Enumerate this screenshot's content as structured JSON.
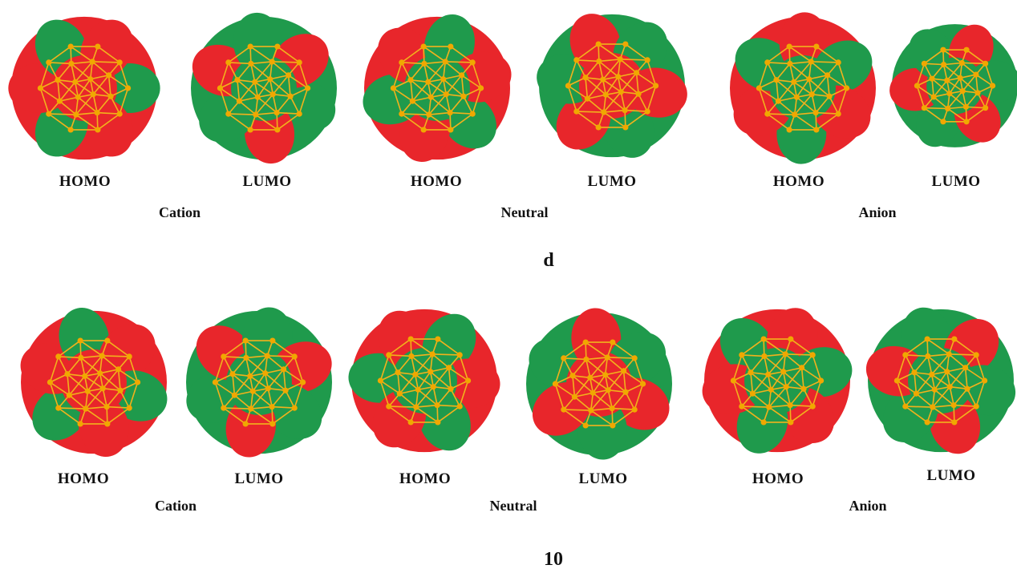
{
  "rows": [
    {
      "orbitals": [
        {
          "label": "HOMO"
        },
        {
          "label": "LUMO"
        },
        {
          "label": "HOMO"
        },
        {
          "label": "LUMO"
        },
        {
          "label": "HOMO"
        },
        {
          "label": "LUMO"
        }
      ],
      "groups": [
        "Cation",
        "Neutral",
        "Anion"
      ],
      "panel_label": "d"
    },
    {
      "orbitals": [
        {
          "label": "HOMO"
        },
        {
          "label": "LUMO"
        },
        {
          "label": "HOMO"
        },
        {
          "label": "LUMO"
        },
        {
          "label": "HOMO"
        },
        {
          "label": "LUMO"
        }
      ],
      "groups": [
        "Cation",
        "Neutral",
        "Anion"
      ],
      "panel_label": "10"
    }
  ],
  "colors": {
    "lobe_positive": "#e8262b",
    "lobe_negative": "#1f9a4c",
    "cage_bonds": "#f2b21c",
    "atoms": "#f0a800"
  }
}
